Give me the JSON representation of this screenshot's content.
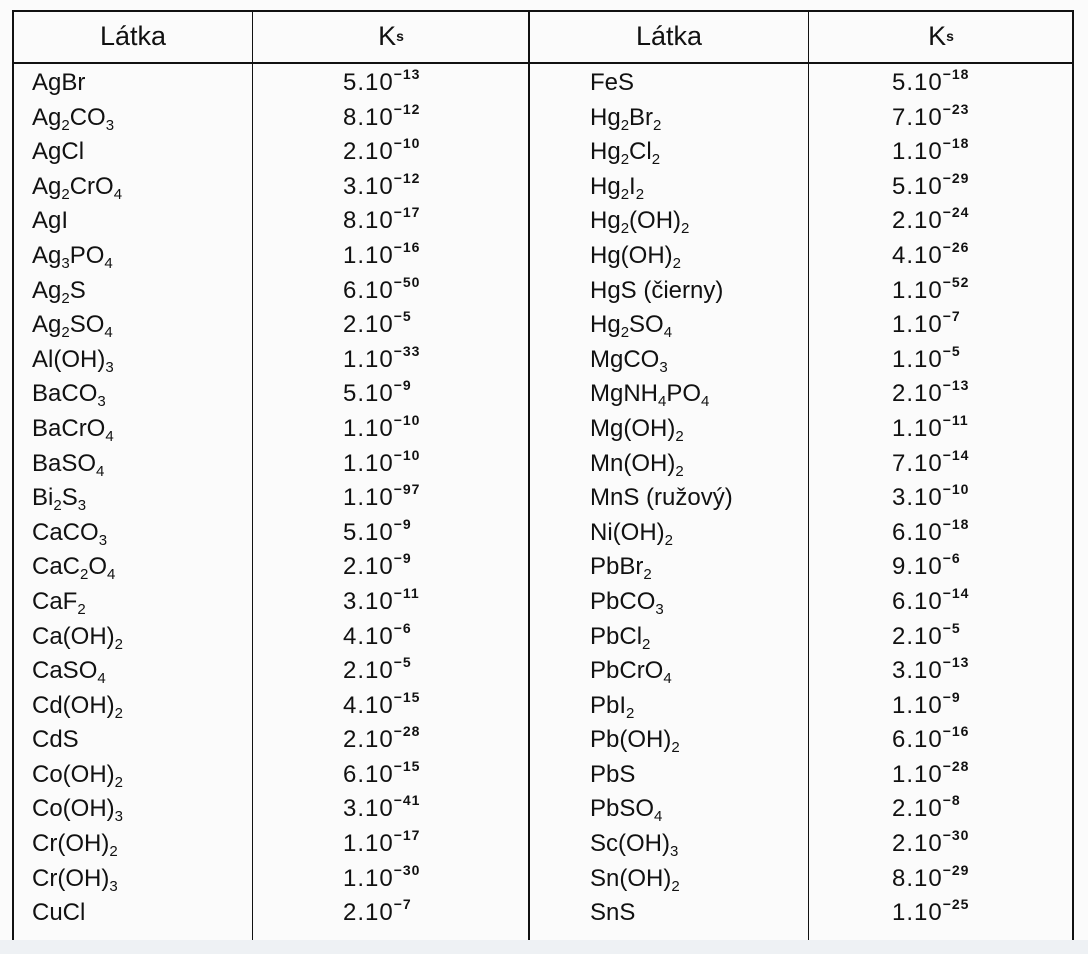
{
  "header": {
    "col1": "Látka",
    "col2": {
      "base": "K",
      "sub": "s"
    },
    "col3": "Látka",
    "col4": {
      "base": "K",
      "sub": "s"
    }
  },
  "left_rows": [
    {
      "substance": [
        [
          "AgBr",
          ""
        ]
      ],
      "ks": "5.10",
      "exp": "-13"
    },
    {
      "substance": [
        [
          "Ag",
          "2"
        ],
        [
          "CO",
          "3"
        ]
      ],
      "ks": "8.10",
      "exp": "-12"
    },
    {
      "substance": [
        [
          "AgCl",
          ""
        ]
      ],
      "ks": "2.10",
      "exp": "-10"
    },
    {
      "substance": [
        [
          "Ag",
          "2"
        ],
        [
          "CrO",
          "4"
        ]
      ],
      "ks": "3.10",
      "exp": "-12"
    },
    {
      "substance": [
        [
          "AgI",
          ""
        ]
      ],
      "ks": "8.10",
      "exp": "-17"
    },
    {
      "substance": [
        [
          "Ag",
          "3"
        ],
        [
          "PO",
          "4"
        ]
      ],
      "ks": "1.10",
      "exp": "-16"
    },
    {
      "substance": [
        [
          "Ag",
          "2"
        ],
        [
          "S",
          ""
        ]
      ],
      "ks": "6.10",
      "exp": "-50"
    },
    {
      "substance": [
        [
          "Ag",
          "2"
        ],
        [
          "SO",
          "4"
        ]
      ],
      "ks": "2.10",
      "exp": "-5"
    },
    {
      "substance": [
        [
          "Al(OH)",
          "3"
        ]
      ],
      "ks": "1.10",
      "exp": "-33"
    },
    {
      "substance": [
        [
          "BaCO",
          "3"
        ]
      ],
      "ks": "5.10",
      "exp": "-9"
    },
    {
      "substance": [
        [
          "BaCrO",
          "4"
        ]
      ],
      "ks": "1.10",
      "exp": "-10"
    },
    {
      "substance": [
        [
          "BaSO",
          "4"
        ]
      ],
      "ks": "1.10",
      "exp": "-10"
    },
    {
      "substance": [
        [
          "Bi",
          "2"
        ],
        [
          "S",
          "3"
        ]
      ],
      "ks": "1.10",
      "exp": "-97"
    },
    {
      "substance": [
        [
          "CaCO",
          "3"
        ]
      ],
      "ks": "5.10",
      "exp": "-9"
    },
    {
      "substance": [
        [
          "CaC",
          "2"
        ],
        [
          "O",
          "4"
        ]
      ],
      "ks": "2.10",
      "exp": "-9"
    },
    {
      "substance": [
        [
          "CaF",
          "2"
        ]
      ],
      "ks": "3.10",
      "exp": "-11"
    },
    {
      "substance": [
        [
          "Ca(OH)",
          "2"
        ]
      ],
      "ks": "4.10",
      "exp": "-6"
    },
    {
      "substance": [
        [
          "CaSO",
          "4"
        ]
      ],
      "ks": "2.10",
      "exp": "-5"
    },
    {
      "substance": [
        [
          "Cd(OH)",
          "2"
        ]
      ],
      "ks": "4.10",
      "exp": "-15"
    },
    {
      "substance": [
        [
          "CdS",
          ""
        ]
      ],
      "ks": "2.10",
      "exp": "-28"
    },
    {
      "substance": [
        [
          "Co(OH)",
          "2"
        ]
      ],
      "ks": "6.10",
      "exp": "-15"
    },
    {
      "substance": [
        [
          "Co(OH)",
          "3"
        ]
      ],
      "ks": "3.10",
      "exp": "-41"
    },
    {
      "substance": [
        [
          "Cr(OH)",
          "2"
        ]
      ],
      "ks": "1.10",
      "exp": "-17"
    },
    {
      "substance": [
        [
          "Cr(OH)",
          "3"
        ]
      ],
      "ks": "1.10",
      "exp": "-30"
    },
    {
      "substance": [
        [
          "CuCl",
          ""
        ]
      ],
      "ks": "2.10",
      "exp": "-7"
    }
  ],
  "right_rows": [
    {
      "substance": [
        [
          "FeS",
          ""
        ]
      ],
      "ks": "5.10",
      "exp": "-18"
    },
    {
      "substance": [
        [
          "Hg",
          "2"
        ],
        [
          "Br",
          "2"
        ]
      ],
      "ks": "7.10",
      "exp": "-23"
    },
    {
      "substance": [
        [
          "Hg",
          "2"
        ],
        [
          "Cl",
          "2"
        ]
      ],
      "ks": "1.10",
      "exp": "-18"
    },
    {
      "substance": [
        [
          "Hg",
          "2"
        ],
        [
          "I",
          "2"
        ]
      ],
      "ks": "5.10",
      "exp": "-29"
    },
    {
      "substance": [
        [
          "Hg",
          "2"
        ],
        [
          "(OH)",
          "2"
        ]
      ],
      "ks": "2.10",
      "exp": "-24"
    },
    {
      "substance": [
        [
          "Hg(OH)",
          "2"
        ]
      ],
      "ks": "4.10",
      "exp": "-26"
    },
    {
      "substance": [
        [
          "HgS (čierny)",
          ""
        ]
      ],
      "ks": "1.10",
      "exp": "-52"
    },
    {
      "substance": [
        [
          "Hg",
          "2"
        ],
        [
          "SO",
          "4"
        ]
      ],
      "ks": "1.10",
      "exp": "-7"
    },
    {
      "substance": [
        [
          "MgCO",
          "3"
        ]
      ],
      "ks": "1.10",
      "exp": "-5"
    },
    {
      "substance": [
        [
          "MgNH",
          "4"
        ],
        [
          "PO",
          "4"
        ]
      ],
      "ks": "2.10",
      "exp": "-13"
    },
    {
      "substance": [
        [
          "Mg(OH)",
          "2"
        ]
      ],
      "ks": "1.10",
      "exp": "-11"
    },
    {
      "substance": [
        [
          "Mn(OH)",
          "2"
        ]
      ],
      "ks": "7.10",
      "exp": "-14"
    },
    {
      "substance": [
        [
          "MnS (ružový)",
          ""
        ]
      ],
      "ks": "3.10",
      "exp": "-10"
    },
    {
      "substance": [
        [
          "Ni(OH)",
          "2"
        ]
      ],
      "ks": "6.10",
      "exp": "-18"
    },
    {
      "substance": [
        [
          "PbBr",
          "2"
        ]
      ],
      "ks": "9.10",
      "exp": "-6"
    },
    {
      "substance": [
        [
          "PbCO",
          "3"
        ]
      ],
      "ks": "6.10",
      "exp": "-14"
    },
    {
      "substance": [
        [
          "PbCl",
          "2"
        ]
      ],
      "ks": "2.10",
      "exp": "-5"
    },
    {
      "substance": [
        [
          "PbCrO",
          "4"
        ]
      ],
      "ks": "3.10",
      "exp": "-13"
    },
    {
      "substance": [
        [
          "PbI",
          "2"
        ]
      ],
      "ks": "1.10",
      "exp": "-9"
    },
    {
      "substance": [
        [
          "Pb(OH)",
          "2"
        ]
      ],
      "ks": "6.10",
      "exp": "-16"
    },
    {
      "substance": [
        [
          "PbS",
          ""
        ]
      ],
      "ks": "1.10",
      "exp": "-28"
    },
    {
      "substance": [
        [
          "PbSO",
          "4"
        ]
      ],
      "ks": "2.10",
      "exp": "-8"
    },
    {
      "substance": [
        [
          "Sc(OH)",
          "3"
        ]
      ],
      "ks": "2.10",
      "exp": "-30"
    },
    {
      "substance": [
        [
          "Sn(OH)",
          "2"
        ]
      ],
      "ks": "8.10",
      "exp": "-29"
    },
    {
      "substance": [
        [
          "SnS",
          ""
        ]
      ],
      "ks": "1.10",
      "exp": "-25"
    }
  ]
}
